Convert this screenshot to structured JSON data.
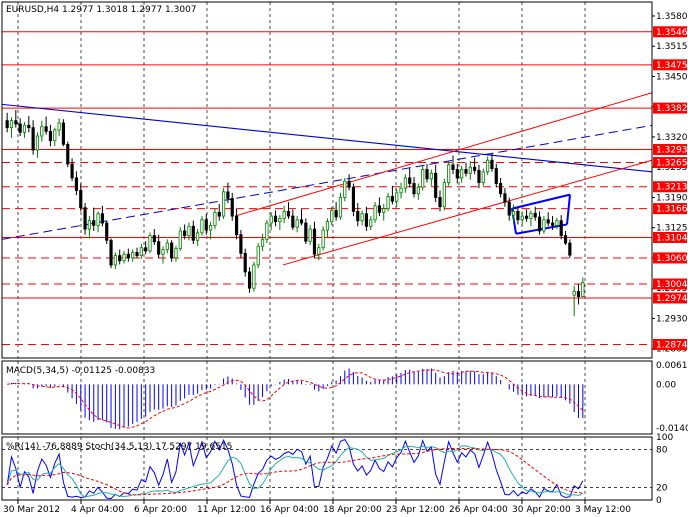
{
  "header": {
    "main": "EURUSD,H4  1.2977 1.3018 1.2977 1.3007",
    "macd": "MACD(5,34,5) -0.01125 -0.00833",
    "osc": "%R(14) -76.8889  Stoch(34,5,13) 17.5297 19.6515"
  },
  "colors": {
    "up": "#008000",
    "down": "#000000",
    "level": "#ff0000",
    "trend": "#0000cd",
    "macd_hist": "#0000ff",
    "macd_signal": "#ff0000",
    "wpr": "#0000ff",
    "stoch_main": "#20b2aa",
    "stoch_signal": "#ff0000",
    "price_tag_bg": "#ff0000",
    "grid": "#000000"
  },
  "chart_data": [
    {
      "type": "candlestick",
      "pane": "price",
      "symbol": "EURUSD",
      "timeframe": "H4",
      "ohlc_last": {
        "open": 1.2977,
        "high": 1.3018,
        "low": 1.2977,
        "close": 1.3007
      },
      "x_tick_labels": [
        "30 Mar 2012",
        "4 Apr 04:00",
        "6 Apr 20:00",
        "11 Apr 12:00",
        "16 Apr 04:00",
        "18 Apr 20:00",
        "23 Apr 12:00",
        "26 Apr 04:00",
        "30 Apr 20:00",
        "3 May 12:00"
      ],
      "y_tick_labels": [
        "1.3580",
        "1.3515",
        "1.3450",
        "1.3385",
        "1.3320",
        "1.3255",
        "1.3190",
        "1.3125",
        "1.3060",
        "1.2995",
        "1.2930",
        "1.2865"
      ],
      "ylim": [
        1.2845,
        1.361
      ],
      "horizontal_levels": [
        {
          "value": 1.3546,
          "label": "1.3546",
          "style": "solid"
        },
        {
          "value": 1.3475,
          "label": "1.3475",
          "style": "solid"
        },
        {
          "value": 1.3382,
          "label": "1.3382",
          "style": "solid"
        },
        {
          "value": 1.3293,
          "label": "1.3293",
          "style": "solid"
        },
        {
          "value": 1.3265,
          "label": "1.3265",
          "style": "dashed"
        },
        {
          "value": 1.3213,
          "label": "1.3213",
          "style": "dashed"
        },
        {
          "value": 1.3166,
          "label": "1.3166",
          "style": "dashed"
        },
        {
          "value": 1.3104,
          "label": "1.3104",
          "style": "solid"
        },
        {
          "value": 1.306,
          "label": "1.3060",
          "style": "dashed"
        },
        {
          "value": 1.3004,
          "label": "1.3004",
          "style": "dashed"
        },
        {
          "value": 1.2974,
          "label": "1.2974",
          "style": "solid"
        },
        {
          "value": 1.2874,
          "label": "1.2874",
          "style": "dashed"
        }
      ],
      "candles": [
        [
          1.3355,
          1.3372,
          1.333,
          1.334
        ],
        [
          1.334,
          1.3362,
          1.3318,
          1.3355
        ],
        [
          1.3355,
          1.3378,
          1.334,
          1.3348
        ],
        [
          1.3348,
          1.336,
          1.3322,
          1.333
        ],
        [
          1.333,
          1.3352,
          1.3318,
          1.3345
        ],
        [
          1.3345,
          1.3365,
          1.333,
          1.334
        ],
        [
          1.334,
          1.3356,
          1.3282,
          1.3292
        ],
        [
          1.3292,
          1.333,
          1.3275,
          1.3322
        ],
        [
          1.3322,
          1.3355,
          1.331,
          1.3342
        ],
        [
          1.3342,
          1.3364,
          1.3325,
          1.3332
        ],
        [
          1.3332,
          1.3346,
          1.33,
          1.3312
        ],
        [
          1.3312,
          1.334,
          1.33,
          1.3335
        ],
        [
          1.3335,
          1.336,
          1.3322,
          1.335
        ],
        [
          1.335,
          1.3358,
          1.33,
          1.3304
        ],
        [
          1.3304,
          1.331,
          1.3255,
          1.3262
        ],
        [
          1.3262,
          1.3274,
          1.3225,
          1.3232
        ],
        [
          1.3232,
          1.3246,
          1.3195,
          1.3205
        ],
        [
          1.3205,
          1.322,
          1.316,
          1.3168
        ],
        [
          1.3168,
          1.3178,
          1.311,
          1.3122
        ],
        [
          1.3122,
          1.315,
          1.3102,
          1.314
        ],
        [
          1.314,
          1.3168,
          1.3118,
          1.313
        ],
        [
          1.313,
          1.316,
          1.3115,
          1.3155
        ],
        [
          1.3155,
          1.3172,
          1.3128,
          1.3135
        ],
        [
          1.3135,
          1.314,
          1.309,
          1.3098
        ],
        [
          1.3098,
          1.3102,
          1.3038,
          1.3045
        ],
        [
          1.3045,
          1.3072,
          1.3036,
          1.3065
        ],
        [
          1.3065,
          1.3078,
          1.3046,
          1.3054
        ],
        [
          1.3054,
          1.3075,
          1.3048,
          1.3068
        ],
        [
          1.3068,
          1.308,
          1.3052,
          1.306
        ],
        [
          1.306,
          1.3078,
          1.3052,
          1.3072
        ],
        [
          1.3072,
          1.3082,
          1.306,
          1.3065
        ],
        [
          1.3065,
          1.309,
          1.3058,
          1.3082
        ],
        [
          1.3082,
          1.3096,
          1.3068,
          1.3075
        ],
        [
          1.3075,
          1.3115,
          1.307,
          1.3108
        ],
        [
          1.3108,
          1.3122,
          1.3088,
          1.3095
        ],
        [
          1.3095,
          1.311,
          1.306,
          1.3068
        ],
        [
          1.3068,
          1.3085,
          1.3048,
          1.3078
        ],
        [
          1.3078,
          1.31,
          1.307,
          1.3092
        ],
        [
          1.3092,
          1.3098,
          1.3052,
          1.306
        ],
        [
          1.306,
          1.3086,
          1.3052,
          1.308
        ],
        [
          1.308,
          1.3126,
          1.3075,
          1.3118
        ],
        [
          1.3118,
          1.3132,
          1.31,
          1.3108
        ],
        [
          1.3108,
          1.3136,
          1.3098,
          1.3128
        ],
        [
          1.3128,
          1.314,
          1.309,
          1.3098
        ],
        [
          1.3098,
          1.3122,
          1.3086,
          1.3114
        ],
        [
          1.3114,
          1.315,
          1.3108,
          1.3142
        ],
        [
          1.3142,
          1.3155,
          1.311,
          1.312
        ],
        [
          1.312,
          1.3138,
          1.31,
          1.313
        ],
        [
          1.313,
          1.3166,
          1.3122,
          1.3158
        ],
        [
          1.3158,
          1.3176,
          1.314,
          1.315
        ],
        [
          1.315,
          1.321,
          1.3144,
          1.3202
        ],
        [
          1.3202,
          1.3222,
          1.3178,
          1.3188
        ],
        [
          1.3188,
          1.32,
          1.314,
          1.315
        ],
        [
          1.315,
          1.3165,
          1.31,
          1.311
        ],
        [
          1.311,
          1.312,
          1.306,
          1.307
        ],
        [
          1.307,
          1.308,
          1.302,
          1.303
        ],
        [
          1.303,
          1.304,
          1.2985,
          1.2995
        ],
        [
          1.2995,
          1.3052,
          1.2988,
          1.3045
        ],
        [
          1.3045,
          1.3092,
          1.3038,
          1.3085
        ],
        [
          1.3085,
          1.3112,
          1.3075,
          1.31
        ],
        [
          1.31,
          1.3142,
          1.3092,
          1.3135
        ],
        [
          1.3135,
          1.3158,
          1.312,
          1.315
        ],
        [
          1.315,
          1.3162,
          1.3128,
          1.3138
        ],
        [
          1.3138,
          1.3152,
          1.312,
          1.3145
        ],
        [
          1.3145,
          1.3172,
          1.3135,
          1.316
        ],
        [
          1.316,
          1.318,
          1.3144,
          1.315
        ],
        [
          1.315,
          1.3164,
          1.312,
          1.3126
        ],
        [
          1.3126,
          1.315,
          1.3115,
          1.3142
        ],
        [
          1.3142,
          1.3165,
          1.313,
          1.3135
        ],
        [
          1.3135,
          1.3145,
          1.309,
          1.3096
        ],
        [
          1.3096,
          1.313,
          1.3088,
          1.3122
        ],
        [
          1.3122,
          1.3138,
          1.306,
          1.3068
        ],
        [
          1.3068,
          1.309,
          1.3055,
          1.3082
        ],
        [
          1.3082,
          1.3128,
          1.3076,
          1.312
        ],
        [
          1.312,
          1.3145,
          1.3105,
          1.3138
        ],
        [
          1.3138,
          1.317,
          1.313,
          1.3162
        ],
        [
          1.3162,
          1.318,
          1.314,
          1.3148
        ],
        [
          1.3148,
          1.32,
          1.3142,
          1.319
        ],
        [
          1.319,
          1.3232,
          1.3182,
          1.3225
        ],
        [
          1.3225,
          1.324,
          1.3205,
          1.3212
        ],
        [
          1.3212,
          1.322,
          1.315,
          1.316
        ],
        [
          1.316,
          1.3178,
          1.3128,
          1.314
        ],
        [
          1.314,
          1.3162,
          1.313,
          1.3155
        ],
        [
          1.3155,
          1.317,
          1.3118,
          1.3128
        ],
        [
          1.3128,
          1.315,
          1.312,
          1.3142
        ],
        [
          1.3142,
          1.318,
          1.3135,
          1.3172
        ],
        [
          1.3172,
          1.319,
          1.315,
          1.3158
        ],
        [
          1.3158,
          1.3176,
          1.314,
          1.3166
        ],
        [
          1.3166,
          1.32,
          1.316,
          1.3192
        ],
        [
          1.3192,
          1.3215,
          1.3175,
          1.3182
        ],
        [
          1.3182,
          1.3208,
          1.317,
          1.32
        ],
        [
          1.32,
          1.3222,
          1.3188,
          1.321
        ],
        [
          1.321,
          1.324,
          1.32,
          1.3232
        ],
        [
          1.3232,
          1.3252,
          1.3212,
          1.322
        ],
        [
          1.322,
          1.3234,
          1.319,
          1.3198
        ],
        [
          1.3198,
          1.322,
          1.3185,
          1.3212
        ],
        [
          1.3212,
          1.3258,
          1.3205,
          1.325
        ],
        [
          1.325,
          1.3262,
          1.3222,
          1.323
        ],
        [
          1.323,
          1.325,
          1.3215,
          1.3242
        ],
        [
          1.3242,
          1.326,
          1.318,
          1.319
        ],
        [
          1.319,
          1.3205,
          1.316,
          1.317
        ],
        [
          1.317,
          1.323,
          1.3162,
          1.3222
        ],
        [
          1.3222,
          1.3268,
          1.3215,
          1.326
        ],
        [
          1.326,
          1.328,
          1.324,
          1.325
        ],
        [
          1.325,
          1.3262,
          1.322,
          1.3232
        ],
        [
          1.3232,
          1.3258,
          1.3222,
          1.325
        ],
        [
          1.325,
          1.3265,
          1.3235,
          1.3242
        ],
        [
          1.3242,
          1.3268,
          1.3228,
          1.3255
        ],
        [
          1.3255,
          1.3275,
          1.324,
          1.3248
        ],
        [
          1.3248,
          1.326,
          1.321,
          1.3222
        ],
        [
          1.3222,
          1.3252,
          1.3215,
          1.3245
        ],
        [
          1.3245,
          1.3278,
          1.3238,
          1.327
        ],
        [
          1.327,
          1.3285,
          1.3245,
          1.3252
        ],
        [
          1.3252,
          1.3262,
          1.3212,
          1.322
        ],
        [
          1.322,
          1.3232,
          1.319,
          1.3198
        ],
        [
          1.3198,
          1.321,
          1.317,
          1.318
        ],
        [
          1.318,
          1.319,
          1.314,
          1.3152
        ],
        [
          1.3152,
          1.3175,
          1.3138,
          1.316
        ],
        [
          1.316,
          1.317,
          1.3132,
          1.3142
        ],
        [
          1.3142,
          1.316,
          1.313,
          1.315
        ],
        [
          1.315,
          1.3164,
          1.3138,
          1.3145
        ],
        [
          1.3145,
          1.3162,
          1.3128,
          1.3156
        ],
        [
          1.3156,
          1.317,
          1.314,
          1.3148
        ],
        [
          1.3148,
          1.316,
          1.311,
          1.3118
        ],
        [
          1.3118,
          1.315,
          1.3112,
          1.3142
        ],
        [
          1.3142,
          1.3158,
          1.3128,
          1.3135
        ],
        [
          1.3135,
          1.315,
          1.312,
          1.313
        ],
        [
          1.313,
          1.3146,
          1.3122,
          1.314
        ],
        [
          1.314,
          1.3152,
          1.31,
          1.3108
        ],
        [
          1.3108,
          1.3118,
          1.3088,
          1.3092
        ],
        [
          1.3092,
          1.31,
          1.306,
          1.3066
        ],
        [
          1.298,
          1.3,
          1.2935,
          1.2988
        ],
        [
          1.2988,
          1.3004,
          1.296,
          1.2977
        ],
        [
          1.2977,
          1.3018,
          1.2977,
          1.3007
        ]
      ],
      "lines": [
        {
          "name": "Blue descending trendline",
          "color": "#0000cd",
          "style": "solid"
        },
        {
          "name": "Blue dashed channel line",
          "color": "#0000cd",
          "style": "dashed"
        },
        {
          "name": "Red ascending channel (upper / lower)",
          "color": "#ff0000",
          "style": "solid"
        },
        {
          "name": "Blue flag",
          "color": "#0000ff",
          "style": "solid"
        }
      ]
    },
    {
      "type": "bar",
      "pane": "MACD",
      "title": "MACD(5,34,5) -0.01125 -0.00833",
      "y_tick_labels": [
        "0.00617",
        "0.00",
        "-0.01409"
      ],
      "ylim": [
        -0.016,
        0.0075
      ],
      "series": [
        {
          "name": "MACD",
          "kind": "histogram"
        },
        {
          "name": "Signal",
          "kind": "line"
        }
      ]
    },
    {
      "type": "line",
      "pane": "Oscillators",
      "title": "%R(14) -76.8889  Stoch(34,5,13) 17.5297 19.6515",
      "y_tick_labels": [
        "100",
        "80",
        "20",
        "0"
      ],
      "ylim": [
        0,
        100
      ],
      "series": [
        {
          "name": "%R(14)"
        },
        {
          "name": "Stoch(34,5,13)"
        }
      ]
    }
  ]
}
